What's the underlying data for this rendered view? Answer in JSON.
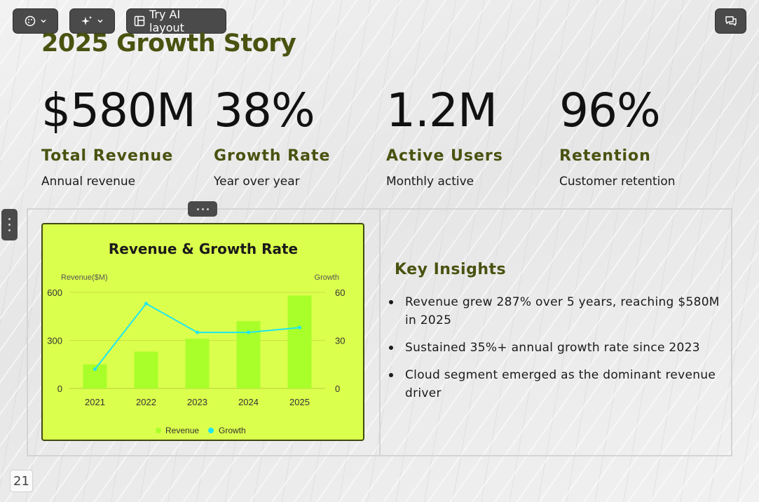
{
  "toolbar": {
    "ai_layout_label": "Try AI layout",
    "icons": [
      "palette-icon",
      "chevron-down-icon",
      "sparkle-icon",
      "layout-icon",
      "comment-icon"
    ]
  },
  "slide": {
    "title": "2025 Growth Story",
    "stats": [
      {
        "value": "$580M",
        "label": "Total Revenue",
        "sub": "Annual revenue"
      },
      {
        "value": "38%",
        "label": "Growth Rate",
        "sub": "Year over year"
      },
      {
        "value": "1.2M",
        "label": "Active Users",
        "sub": "Monthly active"
      },
      {
        "value": "96%",
        "label": "Retention",
        "sub": "Customer retention"
      }
    ],
    "insights_title": "Key Insights",
    "insights": [
      "Revenue grew 287% over 5 years, reaching $580M in 2025",
      "Sustained 35%+ annual growth rate since 2023",
      "Cloud segment emerged as the dominant revenue driver"
    ],
    "page_number": "21"
  },
  "colors": {
    "heading": "#4a5210",
    "card_bg": "#dbff4d",
    "bar": "#a8ff2a",
    "line": "#1ee6f0",
    "toolbar": "#4a4a4a"
  },
  "chart_data": {
    "type": "bar",
    "title": "Revenue & Growth Rate",
    "categories": [
      "2021",
      "2022",
      "2023",
      "2024",
      "2025"
    ],
    "series": [
      {
        "name": "Revenue",
        "type": "bar",
        "axis": "left",
        "values": [
          150,
          230,
          310,
          420,
          580
        ]
      },
      {
        "name": "Growth",
        "type": "line",
        "axis": "right",
        "values": [
          12,
          53,
          35,
          35,
          38
        ]
      }
    ],
    "y_left": {
      "label": "Revenue($M)",
      "range": [
        0,
        600
      ],
      "ticks": [
        "0",
        "300",
        "600"
      ]
    },
    "y_right": {
      "label": "Growth",
      "range": [
        0,
        60
      ],
      "ticks": [
        "0",
        "30",
        "60"
      ]
    },
    "grid": true,
    "legend": "bottom"
  }
}
